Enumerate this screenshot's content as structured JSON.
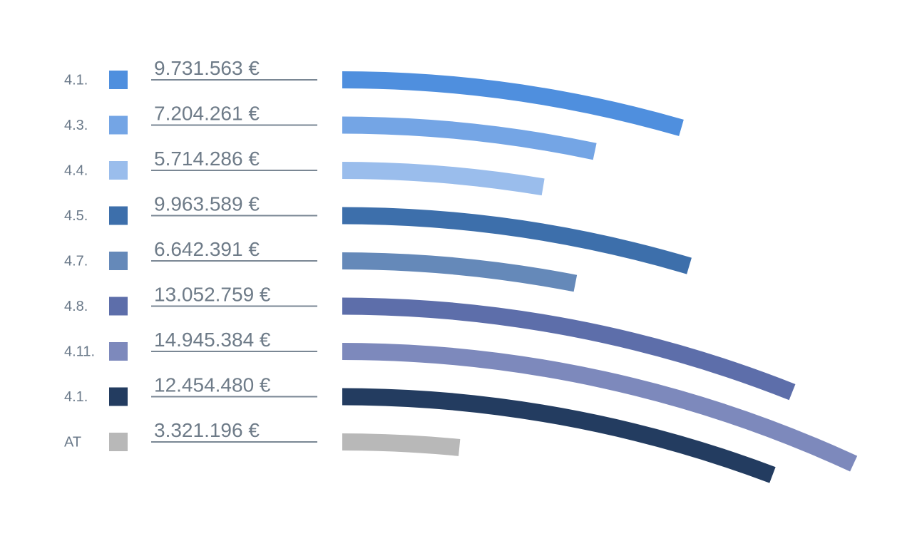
{
  "chart_data": {
    "type": "arc-bar",
    "categories": [
      "4.1.",
      "4.3.",
      "4.4.",
      "4.5.",
      "4.7.",
      "4.8.",
      "4.11.",
      "4.1.",
      "AT"
    ],
    "values": [
      9731563,
      7204261,
      5714286,
      9963589,
      6642391,
      13052759,
      14945384,
      12454480,
      3321196
    ],
    "value_labels": [
      "9.731.563 €",
      "7.204.261 €",
      "5.714.286 €",
      "9.963.589 €",
      "6.642.391 €",
      "13.052.759 €",
      "14.945.384 €",
      "12.454.480 €",
      "3.321.196 €"
    ],
    "colors": [
      "#4f8fde",
      "#74a5e5",
      "#9abdec",
      "#3d6fab",
      "#6589b9",
      "#5d6eaa",
      "#7d89bc",
      "#233c60",
      "#b8b8b8"
    ]
  }
}
